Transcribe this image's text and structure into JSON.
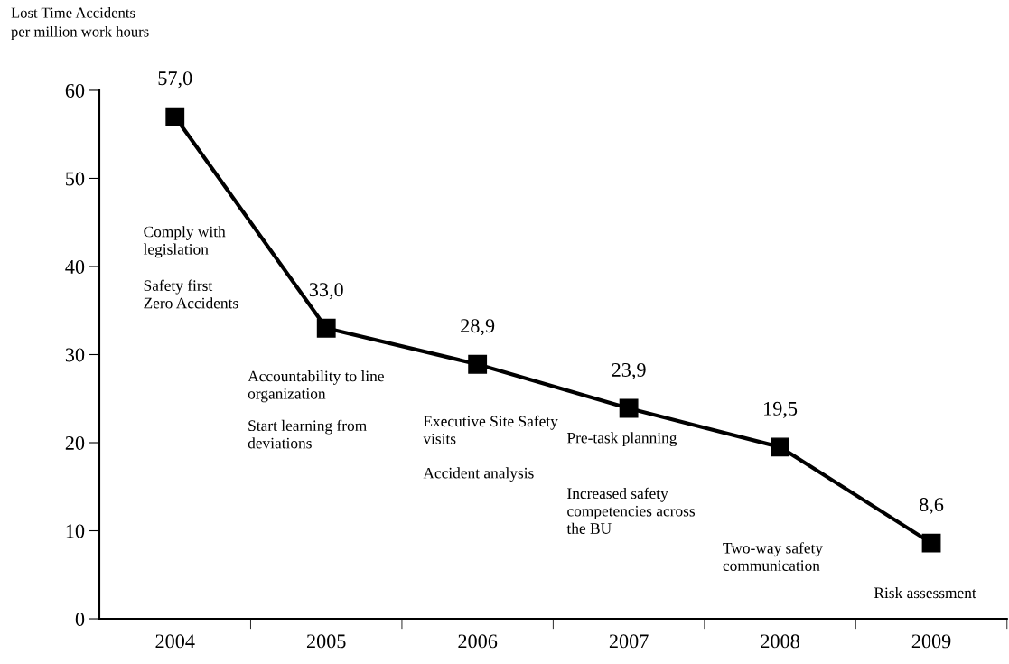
{
  "chart_data": {
    "type": "line",
    "ylabel": "Lost Time Accidents\nper million work hours",
    "categories": [
      "2004",
      "2005",
      "2006",
      "2007",
      "2008",
      "2009"
    ],
    "values": [
      57.0,
      33.0,
      28.9,
      23.9,
      19.5,
      8.6
    ],
    "value_labels": [
      "57,0",
      "33,0",
      "28,9",
      "23,9",
      "19,5",
      "8,6"
    ],
    "color": "#000000",
    "marker": "square",
    "line_style": "solid",
    "ylim": [
      0,
      60
    ],
    "yticks": [
      0,
      10,
      20,
      30,
      40,
      50,
      60
    ],
    "grid": false,
    "legend": false,
    "annotations": [
      "Comply with\nlegislation",
      "Safety first\nZero Accidents",
      "Accountability to line\norganization",
      "Start learning from\ndeviations",
      "Executive Site Safety\nvisits",
      "Accident analysis",
      "Pre-task planning",
      "Increased safety\ncompetencies across\nthe BU",
      "Two-way safety\ncommunication",
      "Risk assessment"
    ]
  }
}
